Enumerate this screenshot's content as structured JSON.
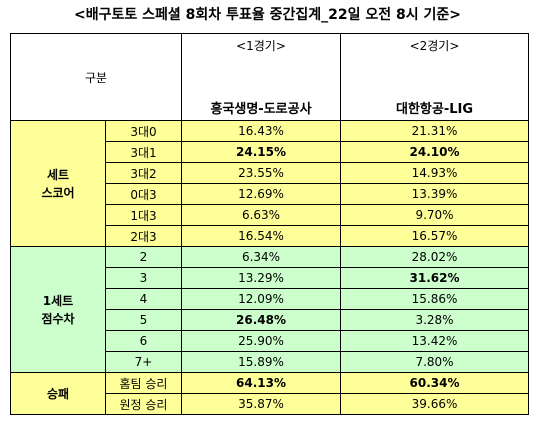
{
  "title": "<배구토토 스페셜 8회차 투표율 중간집계_22일 오전 8시 기준>",
  "header": {
    "category": "구분",
    "games": [
      {
        "no": "<1경기>",
        "match": "흥국생명-도로공사"
      },
      {
        "no": "<2경기>",
        "match": "대한항공-LIG"
      }
    ]
  },
  "groups": [
    {
      "label_lines": [
        "세트",
        "스코어"
      ],
      "color": "#ffff99",
      "rows": [
        {
          "label": "3대0",
          "g1": "16.43%",
          "g2": "21.31%"
        },
        {
          "label": "3대1",
          "g1": "24.15%",
          "g2": "24.10%"
        },
        {
          "label": "3대2",
          "g1": "23.55%",
          "g2": "14.93%"
        },
        {
          "label": "0대3",
          "g1": "12.69%",
          "g2": "13.39%"
        },
        {
          "label": "1대3",
          "g1": "6.63%",
          "g2": "9.70%"
        },
        {
          "label": "2대3",
          "g1": "16.54%",
          "g2": "16.57%"
        }
      ]
    },
    {
      "label_lines": [
        "1세트",
        "점수차"
      ],
      "color": "#ccffcc",
      "rows": [
        {
          "label": "2",
          "g1": "6.34%",
          "g2": "28.02%"
        },
        {
          "label": "3",
          "g1": "13.29%",
          "g2": "31.62%"
        },
        {
          "label": "4",
          "g1": "12.09%",
          "g2": "15.86%"
        },
        {
          "label": "5",
          "g1": "26.48%",
          "g2": "3.28%"
        },
        {
          "label": "6",
          "g1": "25.90%",
          "g2": "13.42%"
        },
        {
          "label": "7+",
          "g1": "15.89%",
          "g2": "7.80%"
        }
      ]
    },
    {
      "label_lines": [
        "승패"
      ],
      "color": "#ffff99",
      "rows": [
        {
          "label": "홈팀 승리",
          "g1": "64.13%",
          "g2": "60.34%"
        },
        {
          "label": "원정 승리",
          "g1": "35.87%",
          "g2": "39.66%"
        }
      ]
    }
  ]
}
